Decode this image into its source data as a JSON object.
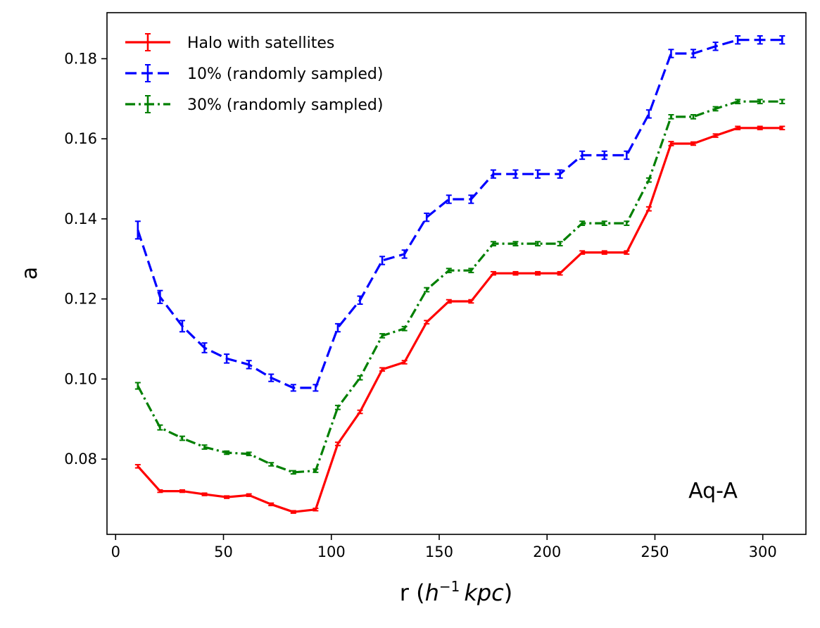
{
  "chart_data": {
    "type": "line",
    "title": "",
    "xlabel": {
      "prefix": "r (",
      "h": "h",
      "exp": "−1",
      "unit": "kpc",
      "suffix": ")"
    },
    "ylabel": "a",
    "xlim": [
      -4,
      320
    ],
    "ylim": [
      0.0612,
      0.1915
    ],
    "xticks": [
      0,
      50,
      100,
      150,
      200,
      250,
      300
    ],
    "yticks": [
      0.08,
      0.1,
      0.12,
      0.14,
      0.16,
      0.18
    ],
    "ytick_labels": [
      "0.08",
      "0.10",
      "0.12",
      "0.14",
      "0.16",
      "0.18"
    ],
    "grid": false,
    "legend_position": "top-left",
    "annotation": "Aq-A",
    "x": [
      10.3,
      20.6,
      30.9,
      41.2,
      51.5,
      61.8,
      72.1,
      82.4,
      92.7,
      103,
      113.3,
      123.6,
      133.9,
      144.2,
      154.5,
      164.8,
      175.1,
      185.4,
      195.7,
      206,
      216.3,
      226.6,
      236.9,
      247.2,
      257.5,
      267.8,
      278.1,
      288.4,
      298.7,
      309
    ],
    "series": [
      {
        "name": "Halo with satellites",
        "color": "#ff0000",
        "linestyle": "solid",
        "values": [
          0.0782,
          0.072,
          0.072,
          0.0712,
          0.0705,
          0.071,
          0.0687,
          0.0668,
          0.0674,
          0.0838,
          0.0918,
          0.1024,
          0.1042,
          0.1142,
          0.1194,
          0.1194,
          0.1264,
          0.1264,
          0.1264,
          0.1264,
          0.1316,
          0.1316,
          0.1316,
          0.1425,
          0.1588,
          0.1588,
          0.1608,
          0.1627,
          0.1627,
          0.1627
        ],
        "errors": [
          0.0004,
          0.0003,
          0.0003,
          0.0003,
          0.0003,
          0.0003,
          0.0003,
          0.0003,
          0.0003,
          0.0004,
          0.0004,
          0.0004,
          0.0004,
          0.0004,
          0.0004,
          0.0004,
          0.0004,
          0.0004,
          0.0004,
          0.0004,
          0.0004,
          0.0004,
          0.0004,
          0.0005,
          0.0005,
          0.0004,
          0.0004,
          0.0004,
          0.0004,
          0.0004
        ]
      },
      {
        "name": "10% (randomly sampled)",
        "color": "#0000ff",
        "linestyle": "dashed",
        "values": [
          0.1372,
          0.1205,
          0.1132,
          0.1078,
          0.1051,
          0.1036,
          0.1003,
          0.0978,
          0.0978,
          0.1128,
          0.1197,
          0.1296,
          0.1312,
          0.1404,
          0.1449,
          0.1449,
          0.1512,
          0.1512,
          0.1512,
          0.1512,
          0.1559,
          0.1559,
          0.1559,
          0.1662,
          0.1813,
          0.1813,
          0.1831,
          0.1847,
          0.1847,
          0.1847
        ],
        "errors": [
          0.0022,
          0.0016,
          0.0014,
          0.0012,
          0.0011,
          0.001,
          0.0009,
          0.0008,
          0.0008,
          0.001,
          0.001,
          0.001,
          0.001,
          0.001,
          0.001,
          0.001,
          0.001,
          0.001,
          0.001,
          0.001,
          0.001,
          0.001,
          0.001,
          0.001,
          0.001,
          0.001,
          0.001,
          0.001,
          0.001,
          0.001
        ]
      },
      {
        "name": "30% (randomly sampled)",
        "color": "#007f00",
        "linestyle": "dashdot",
        "values": [
          0.0983,
          0.0879,
          0.0852,
          0.083,
          0.0816,
          0.0813,
          0.0787,
          0.0767,
          0.0771,
          0.0929,
          0.1003,
          0.1108,
          0.1126,
          0.1223,
          0.1271,
          0.1271,
          0.1338,
          0.1338,
          0.1338,
          0.1338,
          0.1389,
          0.1389,
          0.1389,
          0.1497,
          0.1655,
          0.1655,
          0.1675,
          0.1693,
          0.1693,
          0.1693
        ],
        "errors": [
          0.0008,
          0.0006,
          0.0005,
          0.0005,
          0.0004,
          0.0004,
          0.0004,
          0.0004,
          0.0004,
          0.0005,
          0.0005,
          0.0005,
          0.0005,
          0.0005,
          0.0005,
          0.0005,
          0.0005,
          0.0005,
          0.0005,
          0.0005,
          0.0005,
          0.0005,
          0.0005,
          0.0005,
          0.0005,
          0.0005,
          0.0005,
          0.0005,
          0.0005,
          0.0005
        ]
      }
    ]
  }
}
